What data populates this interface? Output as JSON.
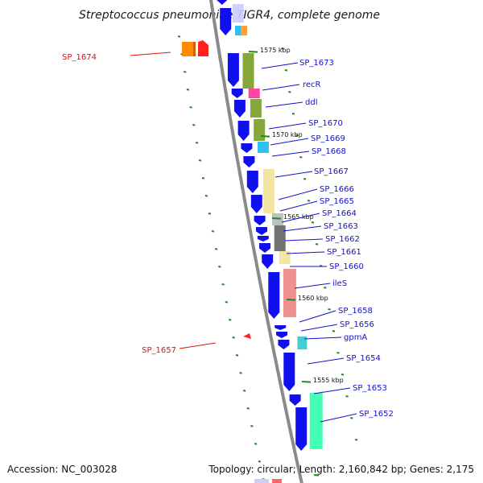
{
  "title": "Streptococcus pneumoniae TIGR4, complete genome",
  "footer": {
    "accession": "Accession: NC_003028",
    "topology": "Topology: circular; Length: 2,160,842 bp; Genes: 2,175"
  },
  "colors": {
    "gene_right": "#ff2020",
    "gene_left": "#1010ee",
    "label_right": "#dd1111",
    "label_left": "#1111cc",
    "backbone": "#8a8a8a",
    "ticks": "#228822"
  },
  "ruler_ticks": [
    {
      "label": "1575 kbp"
    },
    {
      "label": "1570 kbp"
    },
    {
      "label": "1565 kbp"
    },
    {
      "label": "1560 kbp"
    },
    {
      "label": "1555 kbp"
    }
  ],
  "genes_labeled": [
    {
      "name": "SP_1674",
      "strand": "+"
    },
    {
      "name": "SP_1673",
      "strand": "-"
    },
    {
      "name": "recR",
      "strand": "-"
    },
    {
      "name": "ddl",
      "strand": "-"
    },
    {
      "name": "SP_1670",
      "strand": "-"
    },
    {
      "name": "SP_1669",
      "strand": "-"
    },
    {
      "name": "SP_1668",
      "strand": "-"
    },
    {
      "name": "SP_1667",
      "strand": "-"
    },
    {
      "name": "SP_1666",
      "strand": "-"
    },
    {
      "name": "SP_1665",
      "strand": "-"
    },
    {
      "name": "SP_1664",
      "strand": "-"
    },
    {
      "name": "SP_1663",
      "strand": "-"
    },
    {
      "name": "SP_1662",
      "strand": "-"
    },
    {
      "name": "SP_1661",
      "strand": "-"
    },
    {
      "name": "SP_1660",
      "strand": "-"
    },
    {
      "name": "ileS",
      "strand": "-"
    },
    {
      "name": "SP_1658",
      "strand": "-"
    },
    {
      "name": "SP_1656",
      "strand": "-"
    },
    {
      "name": "gpmA",
      "strand": "-"
    },
    {
      "name": "SP_1657",
      "strand": "+"
    },
    {
      "name": "SP_1654",
      "strand": "-"
    },
    {
      "name": "SP_1653",
      "strand": "-"
    },
    {
      "name": "SP_1652",
      "strand": "-"
    }
  ]
}
